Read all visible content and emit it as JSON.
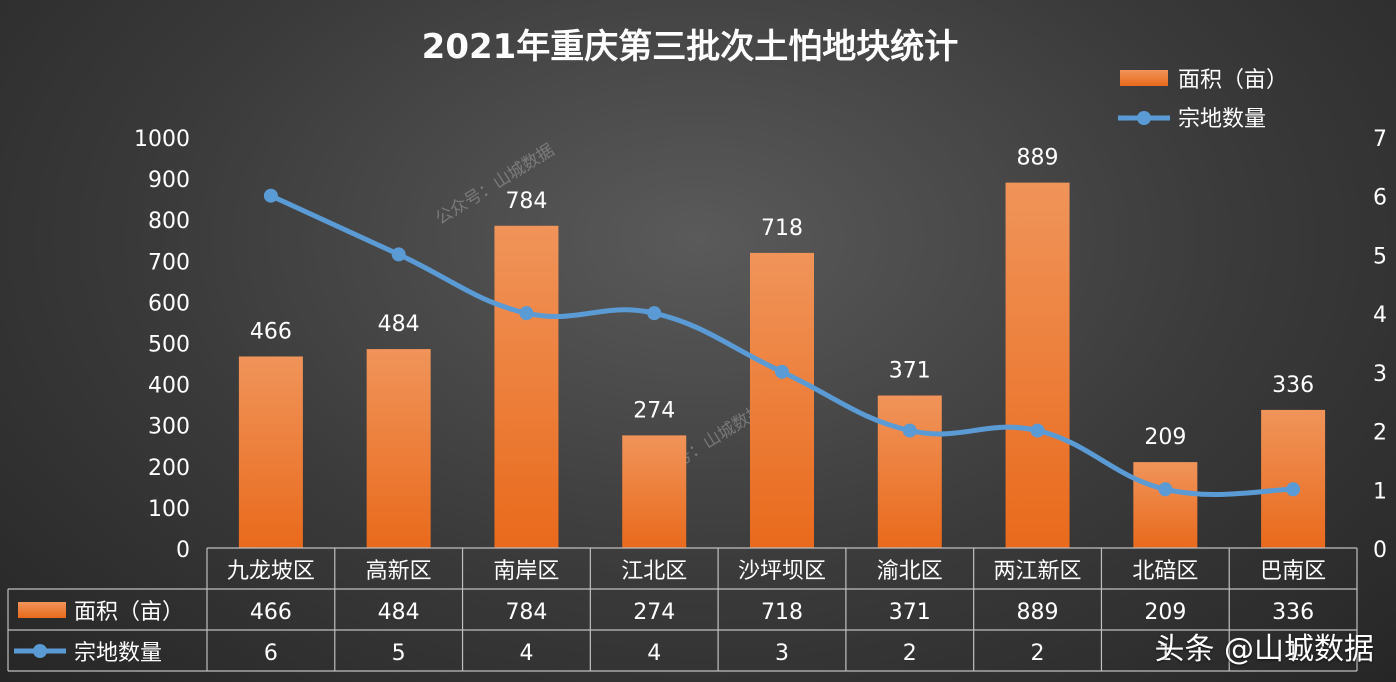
{
  "chart_data": {
    "type": "bar",
    "title": "2021年重庆第三批次土怕地块统计",
    "categories": [
      "九龙坡区",
      "高新区",
      "南岸区",
      "江北区",
      "沙坪坝区",
      "渝北区",
      "两江新区",
      "北碚区",
      "巴南区"
    ],
    "series": [
      {
        "name": "面积（亩）",
        "type": "bar",
        "axis": "left",
        "values": [
          466,
          484,
          784,
          274,
          718,
          371,
          889,
          209,
          336
        ]
      },
      {
        "name": "宗地数量",
        "type": "line",
        "axis": "right",
        "values": [
          6,
          5,
          4,
          4,
          3,
          2,
          2,
          1,
          1
        ]
      }
    ],
    "ylim_left": [
      0,
      1000
    ],
    "yticks_left": [
      "0",
      "100",
      "200",
      "300",
      "400",
      "500",
      "600",
      "700",
      "800",
      "900",
      "1000"
    ],
    "ylim_right": [
      0,
      7
    ],
    "yticks_right": [
      "0",
      "1",
      "2",
      "3",
      "4",
      "5",
      "6",
      "7"
    ],
    "legend_position": "top-right",
    "data_table": true,
    "colors": {
      "bar": "#ed7d31",
      "line": "#5b9bd5",
      "text": "#ffffff",
      "grid": "#bfbfbf"
    }
  },
  "watermarks": [
    "公众号：山城数据",
    "公众号：山城数据"
  ],
  "credit": "头条 @山城数据"
}
